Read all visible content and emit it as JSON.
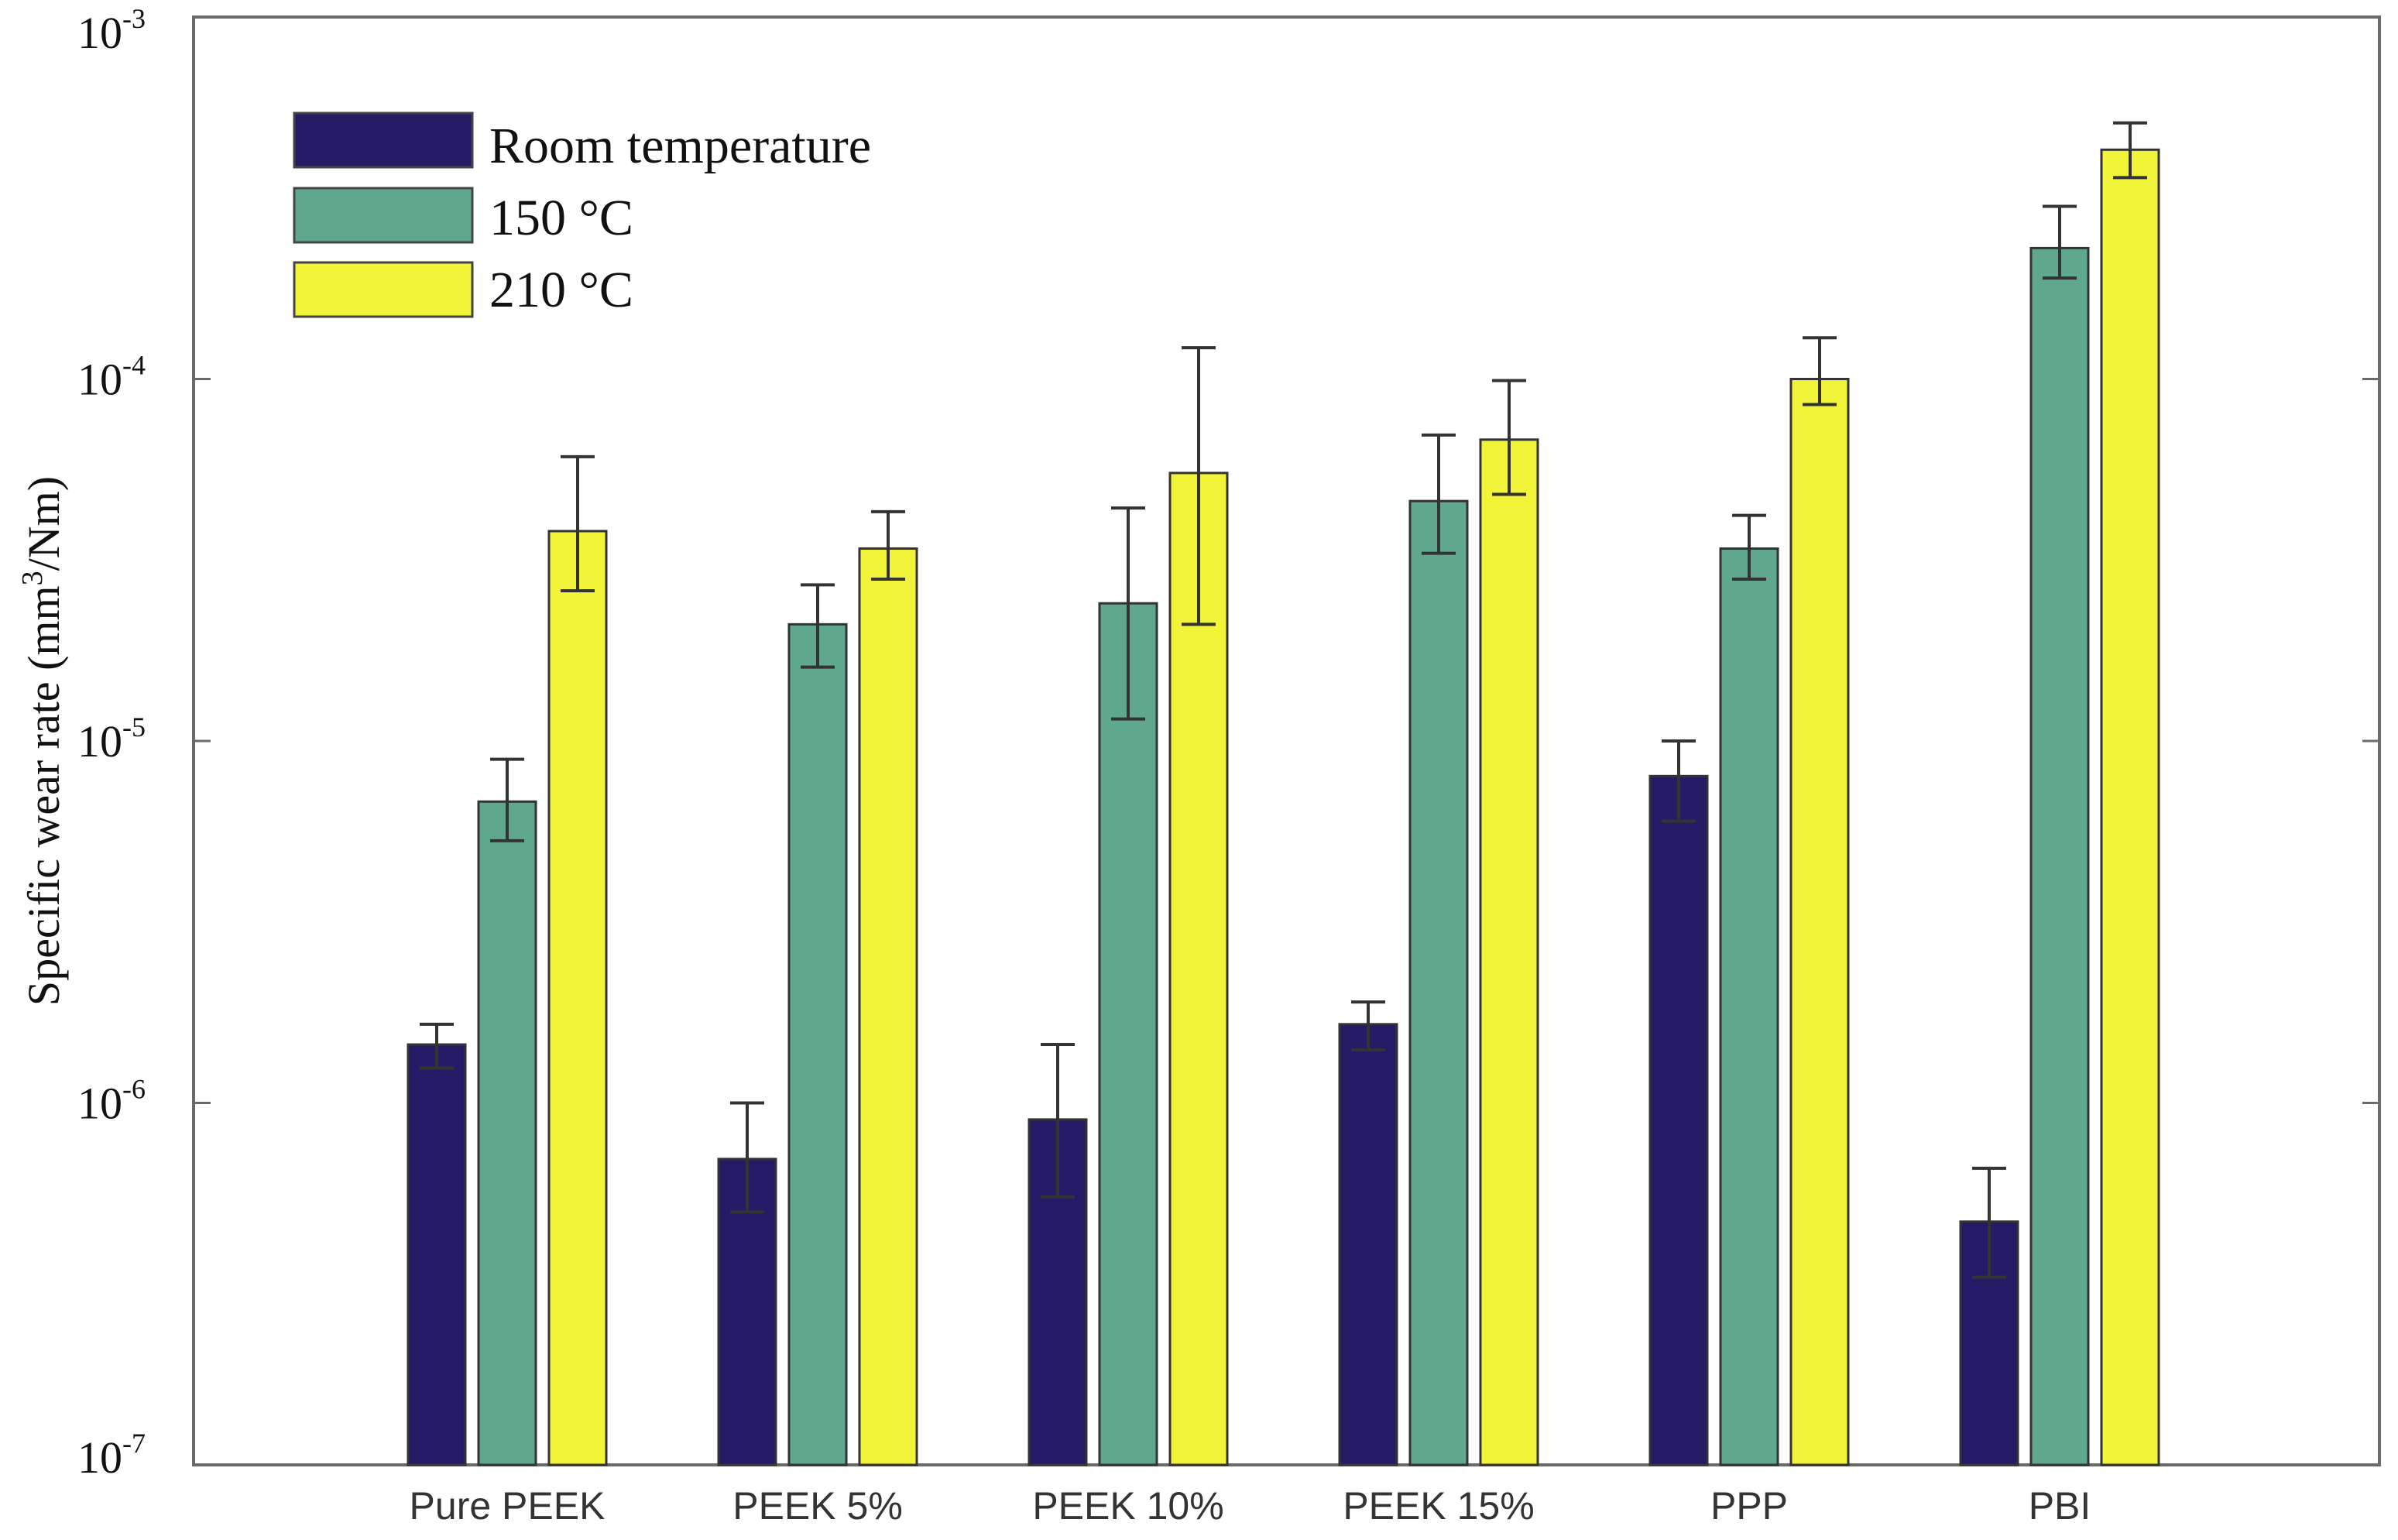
{
  "chart_data": {
    "type": "bar",
    "scale": "log",
    "title": "",
    "xlabel": "",
    "ylabel_main": "Specific wear rate (mm",
    "ylabel_sup": "3",
    "ylabel_end": "/Nm)",
    "ylim": [
      1e-07,
      0.001
    ],
    "yticks": [
      {
        "base": "10",
        "exp": "-3",
        "value": 0.001
      },
      {
        "base": "10",
        "exp": "-4",
        "value": 0.0001
      },
      {
        "base": "10",
        "exp": "-5",
        "value": 1e-05
      },
      {
        "base": "10",
        "exp": "-6",
        "value": 1e-06
      },
      {
        "base": "10",
        "exp": "-7",
        "value": 1e-07
      }
    ],
    "categories": [
      "Pure PEEK",
      "PEEK 5%",
      "PEEK 10%",
      "PEEK 15%",
      "PPP",
      "PBI"
    ],
    "series": [
      {
        "name": "Room temperature",
        "color": "#241b66",
        "values": [
          1.45e-06,
          7e-07,
          9e-07,
          1.65e-06,
          8e-06,
          4.7e-07
        ],
        "err_low": [
          1.25e-06,
          5e-07,
          5.5e-07,
          1.4e-06,
          6e-06,
          3.3e-07
        ],
        "err_high": [
          1.65e-06,
          1e-06,
          1.45e-06,
          1.9e-06,
          1e-05,
          6.6e-07
        ]
      },
      {
        "name": "150 °C",
        "color": "#5fa88e",
        "values": [
          6.8e-06,
          2.1e-05,
          2.4e-05,
          4.6e-05,
          3.4e-05,
          0.00023
        ],
        "err_low": [
          5.3e-06,
          1.6e-05,
          1.15e-05,
          3.3e-05,
          2.8e-05,
          0.00019
        ],
        "err_high": [
          8.9e-06,
          2.7e-05,
          4.4e-05,
          7e-05,
          4.2e-05,
          0.0003
        ]
      },
      {
        "name": "210 °C",
        "color": "#f2f43a",
        "values": [
          3.8e-05,
          3.4e-05,
          5.5e-05,
          6.8e-05,
          0.0001,
          0.00043
        ],
        "err_low": [
          2.6e-05,
          2.8e-05,
          2.1e-05,
          4.8e-05,
          8.5e-05,
          0.00036
        ],
        "err_high": [
          6.1e-05,
          4.3e-05,
          0.000122,
          9.9e-05,
          0.00013,
          0.00051
        ]
      }
    ],
    "legend": [
      "Room temperature",
      "150 °C",
      "210 °C"
    ],
    "legend_position": "top-left",
    "grid": false
  }
}
